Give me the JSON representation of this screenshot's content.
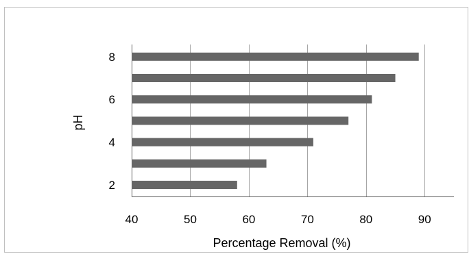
{
  "chart_data": {
    "type": "bar",
    "orientation": "horizontal",
    "title": "",
    "xlabel": "Percentage Removal (%)",
    "ylabel": "pH",
    "xlim": [
      40,
      95
    ],
    "x_ticks": [
      40,
      50,
      60,
      70,
      80,
      90
    ],
    "categories": [
      2,
      3,
      4,
      5,
      6,
      7,
      8
    ],
    "y_tick_labels": [
      "2",
      "4",
      "6",
      "8"
    ],
    "values": [
      58,
      63,
      71,
      77,
      81,
      85,
      89
    ],
    "grid": "vertical",
    "legend": "none",
    "bar_color": "#666666",
    "grid_color": "#a6a6a6"
  }
}
